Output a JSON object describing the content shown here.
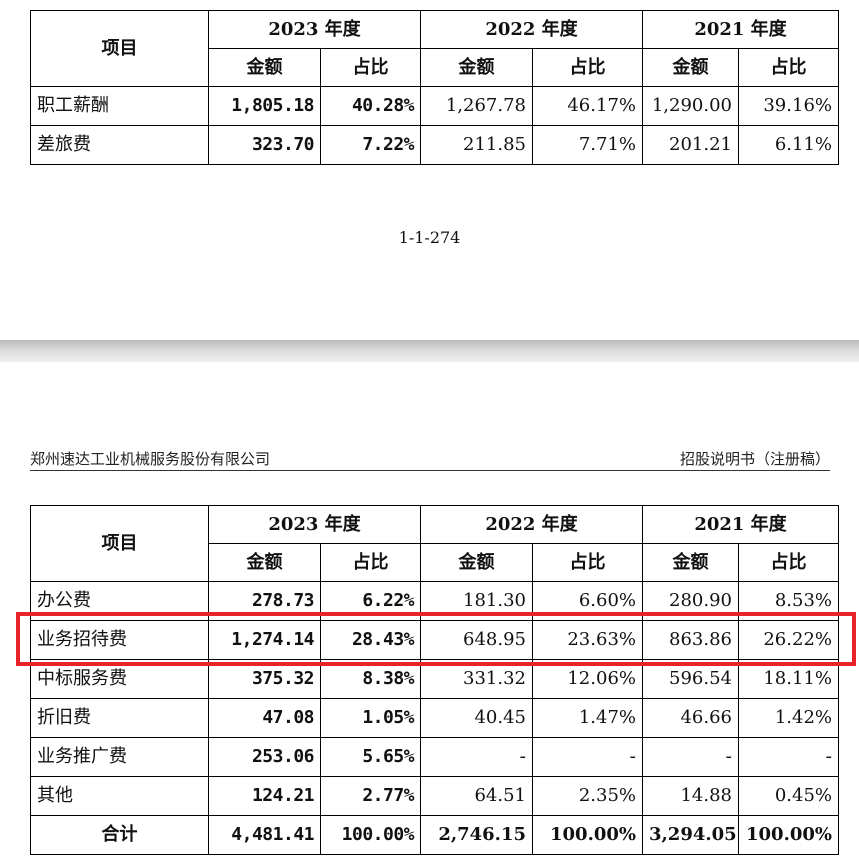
{
  "top_table": {
    "header": {
      "item": "项目",
      "years": [
        "2023 年度",
        "2022 年度",
        "2021 年度"
      ],
      "amount": "金额",
      "ratio": "占比"
    },
    "rows": [
      {
        "label": "职工薪酬",
        "v2023": "1,805.18",
        "r2023": "40.28%",
        "v2022": "1,267.78",
        "r2022": "46.17%",
        "v2021": "1,290.00",
        "r2021": "39.16%"
      },
      {
        "label": "差旅费",
        "v2023": "323.70",
        "r2023": "7.22%",
        "v2022": "211.85",
        "r2022": "7.71%",
        "v2021": "201.21",
        "r2021": "6.11%"
      }
    ]
  },
  "page_number": "1-1-274",
  "doc_header": {
    "company": "郑州速达工业机械服务股份有限公司",
    "doc_type": "招股说明书（注册稿）"
  },
  "bottom_table": {
    "header": {
      "item": "项目",
      "years": [
        "2023 年度",
        "2022 年度",
        "2021 年度"
      ],
      "amount": "金额",
      "ratio": "占比"
    },
    "rows": [
      {
        "label": "办公费",
        "v2023": "278.73",
        "r2023": "6.22%",
        "v2022": "181.30",
        "r2022": "6.60%",
        "v2021": "280.90",
        "r2021": "8.53%"
      },
      {
        "label": "业务招待费",
        "v2023": "1,274.14",
        "r2023": "28.43%",
        "v2022": "648.95",
        "r2022": "23.63%",
        "v2021": "863.86",
        "r2021": "26.22%"
      },
      {
        "label": "中标服务费",
        "v2023": "375.32",
        "r2023": "8.38%",
        "v2022": "331.32",
        "r2022": "12.06%",
        "v2021": "596.54",
        "r2021": "18.11%"
      },
      {
        "label": "折旧费",
        "v2023": "47.08",
        "r2023": "1.05%",
        "v2022": "40.45",
        "r2022": "1.47%",
        "v2021": "46.66",
        "r2021": "1.42%"
      },
      {
        "label": "业务推广费",
        "v2023": "253.06",
        "r2023": "5.65%",
        "v2022": "-",
        "r2022": "-",
        "v2021": "-",
        "r2021": "-"
      },
      {
        "label": "其他",
        "v2023": "124.21",
        "r2023": "2.77%",
        "v2022": "64.51",
        "r2022": "2.35%",
        "v2021": "14.88",
        "r2021": "0.45%"
      }
    ],
    "total": {
      "label": "合计",
      "v2023": "4,481.41",
      "r2023": "100.00%",
      "v2022": "2,746.15",
      "r2022": "100.00%",
      "v2021": "3,294.05",
      "r2021": "100.00%"
    }
  },
  "highlight_color": "#e8232a"
}
